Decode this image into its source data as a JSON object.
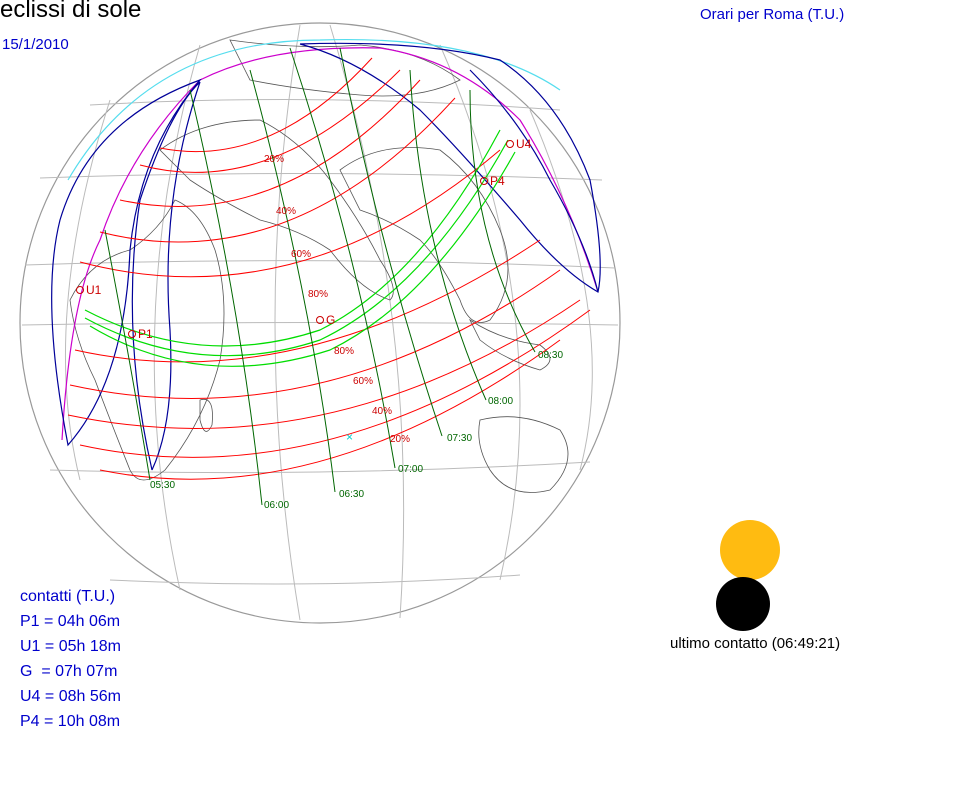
{
  "title": "eclissi di sole",
  "date": "15/1/2010",
  "timezone_note": "Orari per Roma (T.U.)",
  "contacts": {
    "header": "contatti (T.U.)",
    "items": [
      "P1 = 04h 06m",
      "U1 = 05h 18m",
      "G  = 07h 07m",
      "U4 = 08h 56m",
      "P4 = 10h 08m"
    ]
  },
  "last_contact": "ultimo contatto (06:49:21)",
  "points": [
    {
      "label": "U1"
    },
    {
      "label": "P1"
    },
    {
      "label": "G"
    },
    {
      "label": "P4"
    },
    {
      "label": "U4"
    }
  ],
  "magnitude_labels": [
    "20%",
    "40%",
    "60%",
    "80%",
    "80%",
    "60%",
    "40%",
    "20%"
  ],
  "time_labels": [
    "05:30",
    "06:00",
    "06:30",
    "07:00",
    "07:30",
    "08:00",
    "08:30"
  ],
  "colors": {
    "magnitude_lines": "#ff0000",
    "time_lines": "#006600",
    "central_path": "#00dd00",
    "penumbra_limit": "#cc00cc",
    "rise_set_curve": "#000099",
    "horizon": "#55ddee",
    "grid": "#aaaaaa",
    "sun": "#ffbb11",
    "moon": "#000000"
  }
}
